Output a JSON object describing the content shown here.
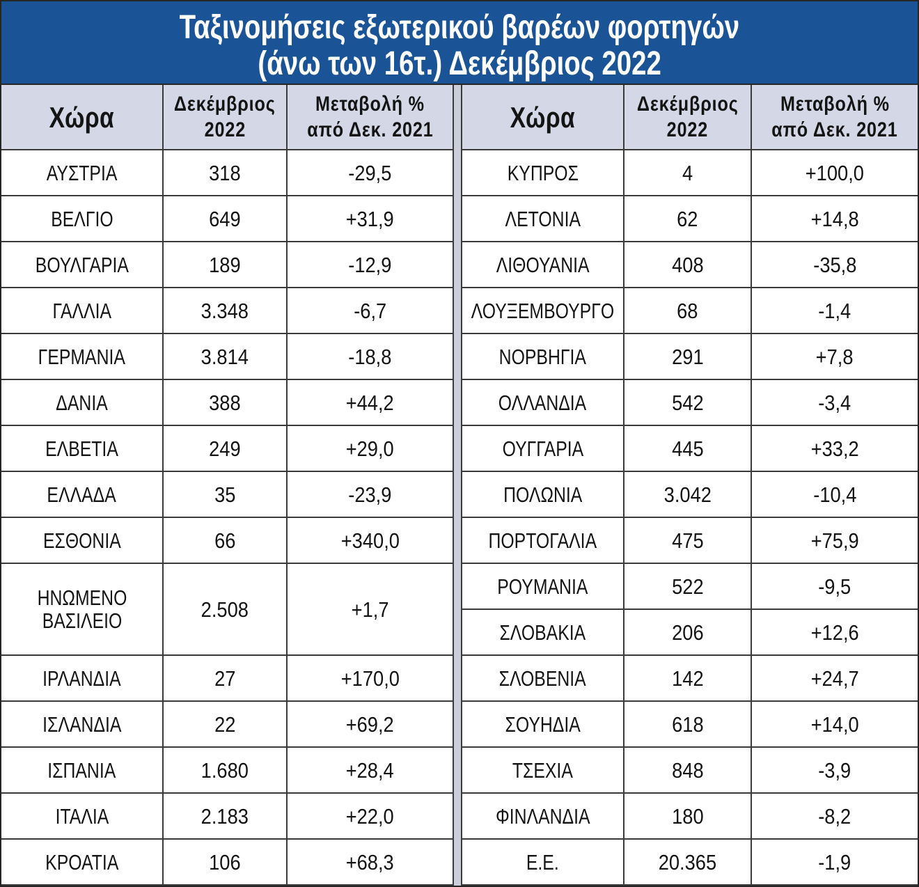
{
  "colors": {
    "title_bg": "#1b5496",
    "title_text": "#ffffff",
    "header_bg": "#d4d8e6",
    "body_bg": "#ffffff",
    "grid_line": "#3a3a3a",
    "separator_bg": "#cbced9",
    "text": "#141414"
  },
  "chart_data": {
    "type": "table",
    "title": [
      "Ταξινομήσεις εξωτερικού βαρέων φορτηγών",
      "(άνω των 16τ.) Δεκέμβριος 2022"
    ],
    "columns": [
      [
        "Χώρα"
      ],
      [
        "Δεκέμβριος",
        "2022"
      ],
      [
        "Μεταβολή %",
        "από Δεκ. 2021"
      ]
    ],
    "rows": [
      {
        "country": "ΑΥΣΤΡΙΑ",
        "december_2022": 318,
        "change_pct_from_dec_2021": -29.5
      },
      {
        "country": "ΒΕΛΓΙΟ",
        "december_2022": 649,
        "change_pct_from_dec_2021": 31.9
      },
      {
        "country": "ΒΟΥΛΓΑΡΙΑ",
        "december_2022": 189,
        "change_pct_from_dec_2021": -12.9
      },
      {
        "country": "ΓΑΛΛΙΑ",
        "december_2022": 3348,
        "change_pct_from_dec_2021": -6.7
      },
      {
        "country": "ΓΕΡΜΑΝΙΑ",
        "december_2022": 3814,
        "change_pct_from_dec_2021": -18.8
      },
      {
        "country": "ΔΑΝΙΑ",
        "december_2022": 388,
        "change_pct_from_dec_2021": 44.2
      },
      {
        "country": "ΕΛΒΕΤΙΑ",
        "december_2022": 249,
        "change_pct_from_dec_2021": 29.0
      },
      {
        "country": "ΕΛΛΑΔΑ",
        "december_2022": 35,
        "change_pct_from_dec_2021": -23.9
      },
      {
        "country": "ΕΣΘΟΝΙΑ",
        "december_2022": 66,
        "change_pct_from_dec_2021": 340.0
      },
      {
        "country": "ΗΝΩΜΕΝΟ ΒΑΣΙΛΕΙΟ",
        "december_2022": 2508,
        "change_pct_from_dec_2021": 1.7
      },
      {
        "country": "ΙΡΛΑΝΔΙΑ",
        "december_2022": 27,
        "change_pct_from_dec_2021": 170.0
      },
      {
        "country": "ΙΣΛΑΝΔΙΑ",
        "december_2022": 22,
        "change_pct_from_dec_2021": 69.2
      },
      {
        "country": "ΙΣΠΑΝΙΑ",
        "december_2022": 1680,
        "change_pct_from_dec_2021": 28.4
      },
      {
        "country": "ΙΤΑΛΙΑ",
        "december_2022": 2183,
        "change_pct_from_dec_2021": 22.0
      },
      {
        "country": "ΚΡΟΑΤΙΑ",
        "december_2022": 106,
        "change_pct_from_dec_2021": 68.3
      },
      {
        "country": "ΚΥΠΡΟΣ",
        "december_2022": 4,
        "change_pct_from_dec_2021": 100.0
      },
      {
        "country": "ΛΕΤΟΝΙΑ",
        "december_2022": 62,
        "change_pct_from_dec_2021": 14.8
      },
      {
        "country": "ΛΙΘΟΥΑΝΙΑ",
        "december_2022": 408,
        "change_pct_from_dec_2021": -35.8
      },
      {
        "country": "ΛΟΥΞΕΜΒΟΥΡΓΟ",
        "december_2022": 68,
        "change_pct_from_dec_2021": -1.4
      },
      {
        "country": "ΝΟΡΒΗΓΙΑ",
        "december_2022": 291,
        "change_pct_from_dec_2021": 7.8
      },
      {
        "country": "ΟΛΛΑΝΔΙΑ",
        "december_2022": 542,
        "change_pct_from_dec_2021": -3.4
      },
      {
        "country": "ΟΥΓΓΑΡΙΑ",
        "december_2022": 445,
        "change_pct_from_dec_2021": 33.2
      },
      {
        "country": "ΠΟΛΩΝΙΑ",
        "december_2022": 3042,
        "change_pct_from_dec_2021": -10.4
      },
      {
        "country": "ΠΟΡΤΟΓΑΛΙΑ",
        "december_2022": 475,
        "change_pct_from_dec_2021": 75.9
      },
      {
        "country": "ΡΟΥΜΑΝΙΑ",
        "december_2022": 522,
        "change_pct_from_dec_2021": -9.5
      },
      {
        "country": "ΣΛΟΒΑΚΙΑ",
        "december_2022": 206,
        "change_pct_from_dec_2021": 12.6
      },
      {
        "country": "ΣΛΟΒΕΝΙΑ",
        "december_2022": 142,
        "change_pct_from_dec_2021": 24.7
      },
      {
        "country": "ΣΟΥΗΔΙΑ",
        "december_2022": 618,
        "change_pct_from_dec_2021": 14.0
      },
      {
        "country": "ΤΣΕΧΙΑ",
        "december_2022": 848,
        "change_pct_from_dec_2021": -3.9
      },
      {
        "country": "ΦΙΝΛΑΝΔΙΑ",
        "december_2022": 180,
        "change_pct_from_dec_2021": -8.2
      },
      {
        "country": "Ε.Ε.",
        "december_2022": 20365,
        "change_pct_from_dec_2021": -1.9
      }
    ]
  }
}
